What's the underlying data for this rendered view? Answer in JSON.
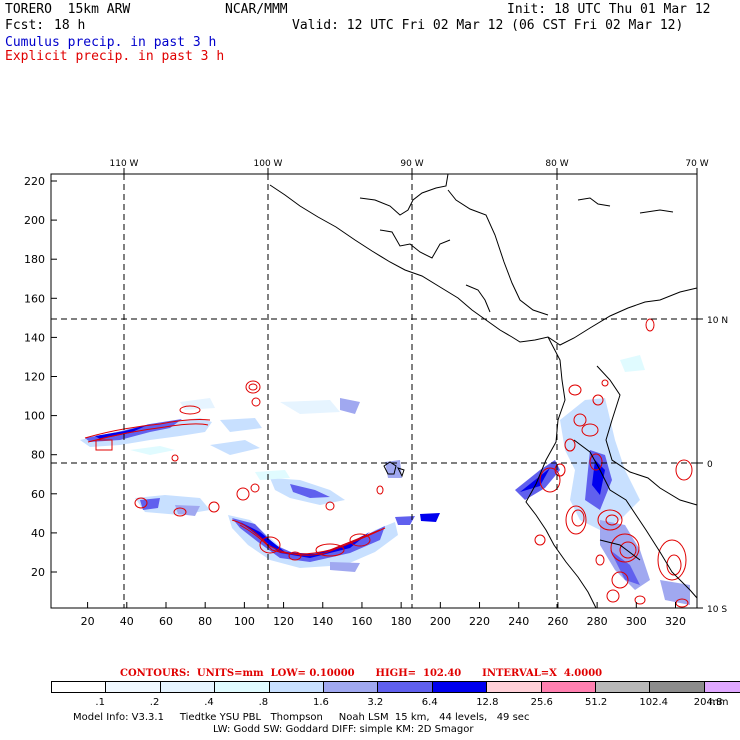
{
  "header": {
    "model": "TORERO  15km ARW",
    "center": "NCAR/MMM",
    "init": "Init: 18 UTC Thu 01 Mar 12",
    "fcst_label": "Fcst:",
    "fcst_value": "18 h",
    "valid": "Valid: 12 UTC Fri 02 Mar 12 (06 CST Fri 02 Mar 12)",
    "line_cumulus": "Cumulus precip. in past 3 h",
    "line_explicit": "Explicit precip. in past 3 h"
  },
  "map": {
    "lon_labels": [
      "110 W",
      "100 W",
      "90 W",
      "80 W",
      "70 W"
    ],
    "lat_labels": [
      "10 N",
      "0",
      "10 S"
    ],
    "x_ticks": [
      "20",
      "40",
      "60",
      "80",
      "100",
      "120",
      "140",
      "160",
      "180",
      "200",
      "220",
      "240",
      "260",
      "280",
      "300",
      "320"
    ],
    "y_ticks": [
      "20",
      "40",
      "60",
      "80",
      "100",
      "120",
      "140",
      "160",
      "180",
      "200",
      "220"
    ],
    "colors": {
      "coast": "#000000",
      "grid": "#000000",
      "contour": "#e00000"
    }
  },
  "legend": {
    "contours_text": "CONTOURS:  UNITS=mm  LOW= 0.10000      HIGH=  102.40      INTERVAL=X  4.0000",
    "labels": [
      ".1",
      ".2",
      ".4",
      ".8",
      "1.6",
      "3.2",
      "6.4",
      "12.8",
      "25.6",
      "51.2",
      "102.4",
      "204.8",
      "mm"
    ],
    "colors": [
      "#ffffff",
      "#f0f8ff",
      "#e6f4ff",
      "#e0fbff",
      "#c8e0ff",
      "#a0a8f0",
      "#6060ee",
      "#0000ee",
      "#ffd0d8",
      "#ff80b0",
      "#b8b8b8",
      "#8c8c8c",
      "#e0a8ff"
    ]
  },
  "footer": {
    "line1": "Model Info: V3.3.1     Tiedtke YSU PBL   Thompson     Noah LSM  15 km,   44 levels,   49 sec",
    "line2": "LW: Godd SW: Goddard DIFF: simple KM: 2D Smagor"
  }
}
